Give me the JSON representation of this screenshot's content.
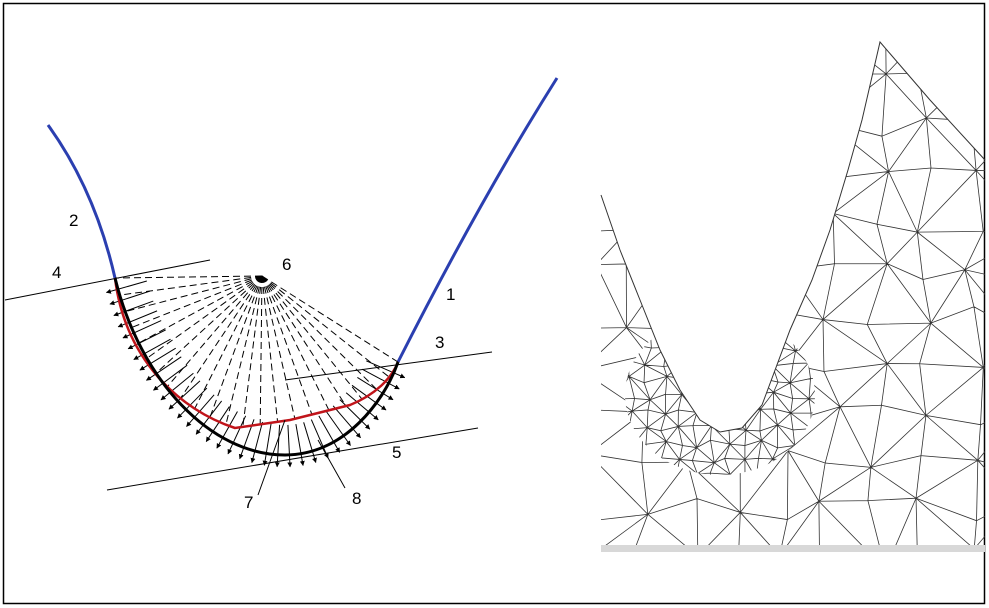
{
  "labels": [
    {
      "text": "1"
    },
    {
      "text": "2"
    },
    {
      "text": "3"
    },
    {
      "text": "4"
    },
    {
      "text": "5"
    },
    {
      "text": "6"
    },
    {
      "text": "7"
    },
    {
      "text": "8"
    }
  ]
}
